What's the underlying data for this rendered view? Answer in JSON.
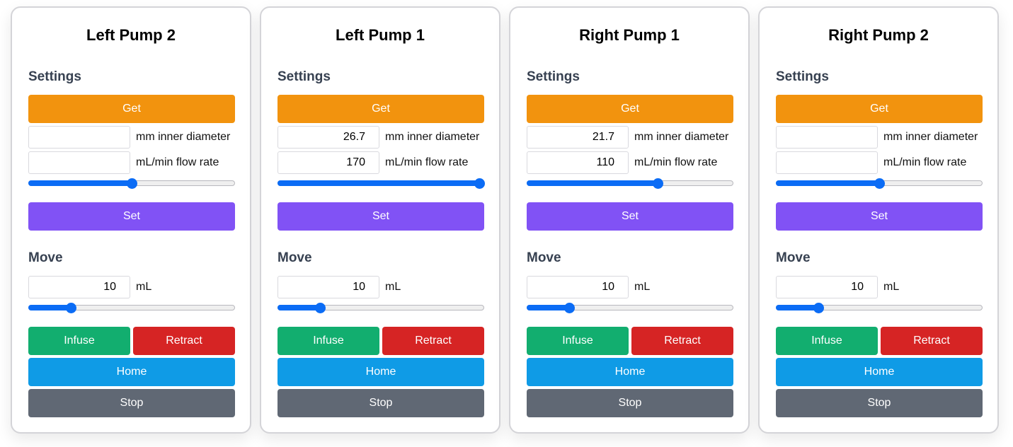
{
  "pumps": [
    {
      "title": "Left Pump 2",
      "settings_label": "Settings",
      "get_label": "Get",
      "diameter_value": "",
      "diameter_unit": "mm inner diameter",
      "flow_value": "",
      "flow_unit": "mL/min flow rate",
      "flow_slider_fraction": 0.5,
      "set_label": "Set",
      "move_label": "Move",
      "volume_value": "10",
      "volume_unit": "mL",
      "volume_slider_fraction": 0.19,
      "infuse_label": "Infuse",
      "retract_label": "Retract",
      "home_label": "Home",
      "stop_label": "Stop"
    },
    {
      "title": "Left Pump 1",
      "settings_label": "Settings",
      "get_label": "Get",
      "diameter_value": "26.7",
      "diameter_unit": "mm inner diameter",
      "flow_value": "170",
      "flow_unit": "mL/min flow rate",
      "flow_slider_fraction": 1.0,
      "set_label": "Set",
      "move_label": "Move",
      "volume_value": "10",
      "volume_unit": "mL",
      "volume_slider_fraction": 0.19,
      "infuse_label": "Infuse",
      "retract_label": "Retract",
      "home_label": "Home",
      "stop_label": "Stop"
    },
    {
      "title": "Right Pump 1",
      "settings_label": "Settings",
      "get_label": "Get",
      "diameter_value": "21.7",
      "diameter_unit": "mm inner diameter",
      "flow_value": "110",
      "flow_unit": "mL/min flow rate",
      "flow_slider_fraction": 0.64,
      "set_label": "Set",
      "move_label": "Move",
      "volume_value": "10",
      "volume_unit": "mL",
      "volume_slider_fraction": 0.19,
      "infuse_label": "Infuse",
      "retract_label": "Retract",
      "home_label": "Home",
      "stop_label": "Stop"
    },
    {
      "title": "Right Pump 2",
      "settings_label": "Settings",
      "get_label": "Get",
      "diameter_value": "",
      "diameter_unit": "mm inner diameter",
      "flow_value": "",
      "flow_unit": "mL/min flow rate",
      "flow_slider_fraction": 0.5,
      "set_label": "Set",
      "move_label": "Move",
      "volume_value": "10",
      "volume_unit": "mL",
      "volume_slider_fraction": 0.19,
      "infuse_label": "Infuse",
      "retract_label": "Retract",
      "home_label": "Home",
      "stop_label": "Stop"
    }
  ]
}
